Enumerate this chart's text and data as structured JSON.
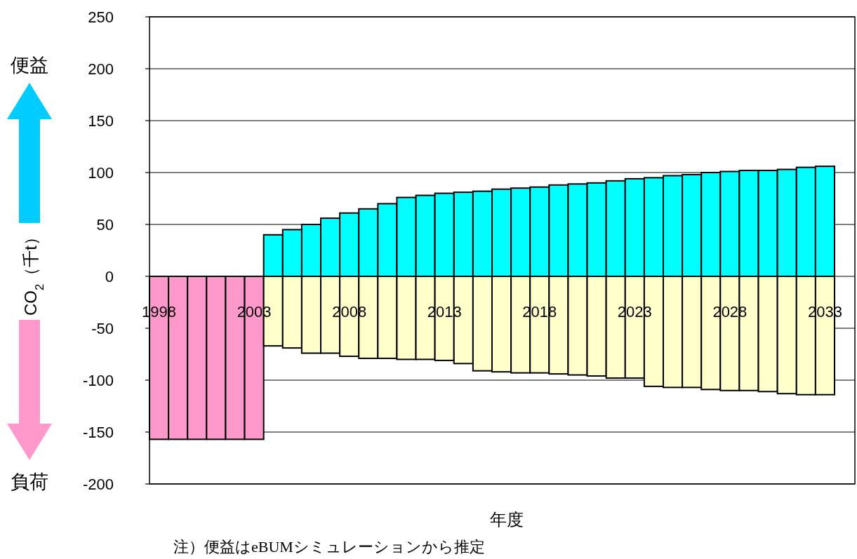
{
  "chart_data": {
    "type": "bar",
    "ylabel": "CO$_{2}$（千t）",
    "xlabel": "年度",
    "annotations": [
      "便益",
      "負荷",
      "注）便益はeBUMシミュレーションから推定"
    ],
    "categories": [
      "1998",
      null,
      null,
      null,
      null,
      "2003",
      null,
      null,
      null,
      null,
      "2008",
      null,
      null,
      null,
      null,
      "2013",
      null,
      null,
      null,
      null,
      "2018",
      null,
      null,
      null,
      null,
      "2023",
      null,
      null,
      null,
      null,
      "2028",
      null,
      null,
      null,
      null,
      "2033"
    ],
    "stacked": true,
    "series": [
      {
        "colors": [
          "#ff99cc",
          "#ff99cc",
          "#ff99cc",
          "#ff99cc",
          "#ff99cc",
          "#ff99cc",
          "#ffffcc",
          "#ffffcc",
          "#ffffcc",
          "#ffffcc",
          "#ffffcc",
          "#ffffcc",
          "#ffffcc",
          "#ffffcc",
          "#ffffcc",
          "#ffffcc",
          "#ffffcc",
          "#ffffcc",
          "#ffffcc",
          "#ffffcc",
          "#ffffcc",
          "#ffffcc",
          "#ffffcc",
          "#ffffcc",
          "#ffffcc",
          "#ffffcc",
          "#ffffcc",
          "#ffffcc",
          "#ffffcc",
          "#ffffcc",
          "#ffffcc",
          "#ffffcc",
          "#ffffcc",
          "#ffffcc",
          "#ffffcc",
          "#ffffcc"
        ],
        "values": [
          -157,
          -157,
          -157,
          -157,
          -157,
          -157,
          -67,
          -69,
          -74,
          -74,
          -77,
          -79,
          -79,
          -80,
          -80,
          -81,
          -84,
          -91,
          -92,
          -93,
          -93,
          -94,
          -95,
          -96,
          -98,
          -98,
          -106,
          -107,
          -107,
          -109,
          -110,
          -110,
          -111,
          -113,
          -114,
          -114
        ]
      },
      {
        "color": "#00ffff",
        "values": [
          null,
          null,
          null,
          null,
          null,
          null,
          40,
          45,
          50,
          56,
          61,
          65,
          70,
          76,
          78,
          80,
          81,
          82,
          84,
          85,
          86,
          88,
          89,
          90,
          92,
          94,
          95,
          97,
          98,
          100,
          101,
          102,
          102,
          103,
          105,
          106
        ]
      }
    ],
    "ylim": [
      -200,
      250
    ],
    "yticks": [
      -200,
      -150,
      -100,
      -50,
      0,
      50,
      100,
      150,
      200,
      250
    ],
    "grid": "y"
  }
}
